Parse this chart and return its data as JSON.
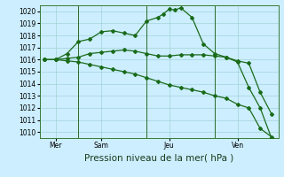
{
  "title": "Pression niveau de la mer( hPa )",
  "bg_color": "#cceeff",
  "grid_color": "#99cccc",
  "line_color": "#1a6b1a",
  "vline_color": "#2a6a2a",
  "ylim": [
    1009.5,
    1020.5
  ],
  "yticks": [
    1010,
    1011,
    1012,
    1013,
    1014,
    1015,
    1016,
    1017,
    1018,
    1019,
    1020
  ],
  "xlim": [
    -0.2,
    10.3
  ],
  "day_positions": [
    0.5,
    2.5,
    5.5,
    8.5
  ],
  "day_labels": [
    "Mer",
    "Sam",
    "Jeu",
    "Ven"
  ],
  "vlines": [
    1.5,
    4.5,
    7.5
  ],
  "line1_x": [
    0,
    0.5,
    1,
    1.5,
    2,
    2.5,
    3,
    3.5,
    4,
    4.5,
    5,
    5.25,
    5.5,
    5.75,
    6,
    6.5,
    7,
    7.5,
    8,
    8.5,
    9,
    9.5,
    10
  ],
  "line1_y": [
    1016.0,
    1016.0,
    1016.5,
    1017.5,
    1017.7,
    1018.3,
    1018.4,
    1018.2,
    1018.0,
    1019.2,
    1019.5,
    1019.8,
    1020.2,
    1020.1,
    1020.3,
    1019.5,
    1017.3,
    1016.5,
    1016.2,
    1015.8,
    1013.7,
    1012.0,
    1009.5
  ],
  "line2_x": [
    0,
    0.5,
    1,
    1.5,
    2,
    2.5,
    3,
    3.5,
    4,
    4.5,
    5,
    5.5,
    6,
    6.5,
    7,
    7.5,
    8,
    8.5,
    9,
    9.5,
    10
  ],
  "line2_y": [
    1016.0,
    1016.0,
    1016.1,
    1016.2,
    1016.5,
    1016.6,
    1016.7,
    1016.8,
    1016.7,
    1016.5,
    1016.3,
    1016.3,
    1016.4,
    1016.4,
    1016.4,
    1016.3,
    1016.2,
    1015.9,
    1015.7,
    1013.3,
    1011.5
  ],
  "line3_x": [
    0,
    0.5,
    1,
    1.5,
    2,
    2.5,
    3,
    3.5,
    4,
    4.5,
    5,
    5.5,
    6,
    6.5,
    7,
    7.5,
    8,
    8.5,
    9,
    9.5,
    10
  ],
  "line3_y": [
    1016.0,
    1016.0,
    1015.9,
    1015.8,
    1015.6,
    1015.4,
    1015.2,
    1015.0,
    1014.8,
    1014.5,
    1014.2,
    1013.9,
    1013.7,
    1013.5,
    1013.3,
    1013.0,
    1012.8,
    1012.3,
    1012.0,
    1010.3,
    1009.6
  ],
  "title_fontsize": 7.5,
  "tick_fontsize": 5.5,
  "lw": 0.9,
  "ms": 2.0
}
